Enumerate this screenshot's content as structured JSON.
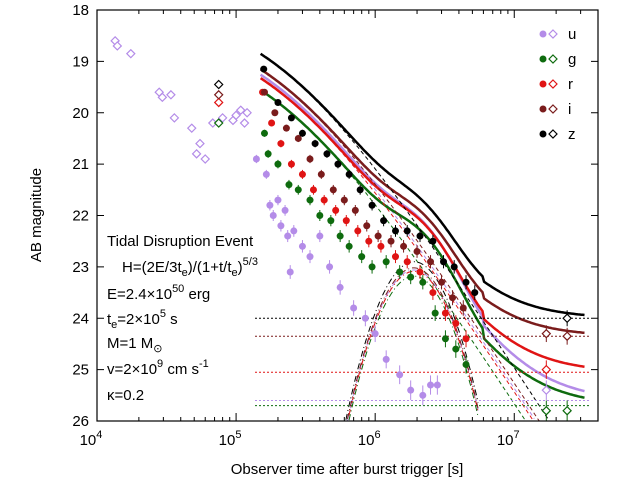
{
  "chart_data": {
    "type": "scatter",
    "title": "",
    "xlabel": "Observer time after burst trigger [s]",
    "ylabel": "AB magnitude",
    "xscale": "log",
    "xlim": [
      10000,
      40000000
    ],
    "ylim": [
      26,
      18
    ],
    "y_inverted": true,
    "x_tick_labels": [
      {
        "value": 10000,
        "base": "10",
        "exp": "4"
      },
      {
        "value": 100000,
        "base": "10",
        "exp": "5"
      },
      {
        "value": 1000000,
        "base": "10",
        "exp": "6"
      },
      {
        "value": 10000000,
        "base": "10",
        "exp": "7"
      }
    ],
    "y_ticks": [
      18,
      19,
      20,
      21,
      22,
      23,
      24,
      25,
      26
    ],
    "legend_position": "top-right",
    "annotation": {
      "line1": "Tidal Disruption Event",
      "line2": "H=(2E/3t",
      "line2_sub": "e",
      "line2_mid": ")/(1+t/t",
      "line2_sub2": "e",
      "line2_end": ")",
      "line2_sup": "5/3",
      "E_prefix": "E=2.4×10",
      "E_exp": "50",
      "E_unit": " erg",
      "te_t": "t",
      "te_sub": "e",
      "te_val": "=2×10",
      "te_exp": "5",
      "te_unit": " s",
      "M_prefix": "M=1 M",
      "M_sub": "⊙",
      "v_prefix": "v=2×10",
      "v_exp": "9",
      "v_unit": " cm s",
      "v_unit_exp": "-1",
      "kappa": "κ=0.2"
    },
    "series": [
      {
        "name": "u",
        "color": "#b48ce8",
        "floor": 25.6,
        "points": [
          [
            13500,
            18.6
          ],
          [
            14000,
            18.7
          ],
          [
            17500,
            18.85
          ],
          [
            28000,
            19.6
          ],
          [
            29500,
            19.7
          ],
          [
            34000,
            19.65
          ],
          [
            36000,
            20.1
          ],
          [
            48000,
            20.3
          ],
          [
            52000,
            20.8
          ],
          [
            55000,
            20.6
          ],
          [
            60000,
            20.9
          ],
          [
            68000,
            20.2
          ],
          [
            80000,
            20.1
          ],
          [
            95000,
            20.15
          ],
          [
            100000,
            20.05
          ],
          [
            108000,
            19.95
          ],
          [
            115000,
            20.2
          ],
          [
            120000,
            20.0
          ],
          [
            140000,
            20.9
          ],
          [
            165000,
            21.2
          ],
          [
            175000,
            21.8
          ],
          [
            185000,
            22.0
          ],
          [
            200000,
            21.7
          ],
          [
            210000,
            22.2
          ],
          [
            225000,
            21.9
          ],
          [
            235000,
            22.4
          ],
          [
            245000,
            23.1
          ],
          [
            260000,
            22.3
          ],
          [
            300000,
            22.6
          ],
          [
            340000,
            22.8
          ],
          [
            400000,
            22.4
          ],
          [
            470000,
            23.0
          ],
          [
            560000,
            23.4
          ],
          [
            700000,
            23.8
          ],
          [
            850000,
            24.0
          ],
          [
            1000000,
            24.3
          ],
          [
            1200000,
            24.8
          ],
          [
            1500000,
            25.1
          ],
          [
            1800000,
            25.4
          ],
          [
            2200000,
            25.5
          ],
          [
            2500000,
            25.3
          ],
          [
            2800000,
            25.3
          ],
          [
            17000000,
            25.4
          ]
        ]
      },
      {
        "name": "g",
        "color": "#0e6b0e",
        "floor": 25.7,
        "points": [
          [
            75000,
            20.2
          ],
          [
            160000,
            20.4
          ],
          [
            170000,
            20.8
          ],
          [
            200000,
            21.0
          ],
          [
            240000,
            21.4
          ],
          [
            280000,
            21.5
          ],
          [
            340000,
            21.7
          ],
          [
            400000,
            22.0
          ],
          [
            480000,
            22.1
          ],
          [
            560000,
            22.4
          ],
          [
            650000,
            22.6
          ],
          [
            800000,
            22.8
          ],
          [
            950000,
            23.0
          ],
          [
            1200000,
            22.9
          ],
          [
            1500000,
            23.1
          ],
          [
            1800000,
            23.2
          ],
          [
            2200000,
            23.3
          ],
          [
            2700000,
            23.9
          ],
          [
            3200000,
            24.4
          ],
          [
            3800000,
            24.6
          ],
          [
            4500000,
            24.9
          ],
          [
            17000000,
            25.8
          ],
          [
            24000000,
            25.8
          ]
        ]
      },
      {
        "name": "r",
        "color": "#e01414",
        "floor": 25.05,
        "points": [
          [
            75000,
            19.8
          ],
          [
            155000,
            19.6
          ],
          [
            180000,
            20.2
          ],
          [
            210000,
            20.6
          ],
          [
            250000,
            21.0
          ],
          [
            300000,
            21.2
          ],
          [
            360000,
            21.5
          ],
          [
            430000,
            21.7
          ],
          [
            520000,
            21.9
          ],
          [
            620000,
            22.1
          ],
          [
            750000,
            22.3
          ],
          [
            900000,
            22.5
          ],
          [
            1100000,
            22.6
          ],
          [
            1400000,
            22.8
          ],
          [
            1700000,
            22.9
          ],
          [
            2100000,
            23.1
          ],
          [
            2600000,
            23.5
          ],
          [
            3200000,
            23.9
          ],
          [
            3800000,
            24.1
          ],
          [
            4500000,
            24.4
          ],
          [
            17000000,
            25.0
          ]
        ]
      },
      {
        "name": "i",
        "color": "#7a1c1c",
        "floor": 24.35,
        "points": [
          [
            75000,
            19.65
          ],
          [
            160000,
            19.6
          ],
          [
            190000,
            20.0
          ],
          [
            230000,
            20.3
          ],
          [
            280000,
            20.5
          ],
          [
            340000,
            20.9
          ],
          [
            410000,
            21.2
          ],
          [
            500000,
            21.5
          ],
          [
            600000,
            21.7
          ],
          [
            720000,
            21.9
          ],
          [
            870000,
            22.2
          ],
          [
            1050000,
            22.4
          ],
          [
            1300000,
            22.5
          ],
          [
            1600000,
            22.6
          ],
          [
            2000000,
            22.7
          ],
          [
            2500000,
            22.9
          ],
          [
            3000000,
            23.3
          ],
          [
            3600000,
            23.6
          ],
          [
            4300000,
            23.8
          ],
          [
            17000000,
            24.3
          ],
          [
            24000000,
            24.35
          ]
        ]
      },
      {
        "name": "z",
        "color": "#000000",
        "floor": 24.0,
        "points": [
          [
            75000,
            19.45
          ],
          [
            158000,
            19.15
          ],
          [
            200000,
            19.8
          ],
          [
            250000,
            20.1
          ],
          [
            300000,
            20.4
          ],
          [
            370000,
            20.6
          ],
          [
            450000,
            20.8
          ],
          [
            540000,
            21.0
          ],
          [
            650000,
            21.2
          ],
          [
            780000,
            21.5
          ],
          [
            950000,
            21.8
          ],
          [
            1150000,
            22.1
          ],
          [
            1400000,
            22.3
          ],
          [
            1700000,
            22.3
          ],
          [
            2100000,
            22.4
          ],
          [
            2600000,
            22.5
          ],
          [
            3100000,
            22.9
          ],
          [
            3700000,
            23.0
          ],
          [
            4500000,
            23.3
          ],
          [
            5200000,
            23.5
          ],
          [
            24000000,
            24.0
          ]
        ]
      }
    ]
  }
}
